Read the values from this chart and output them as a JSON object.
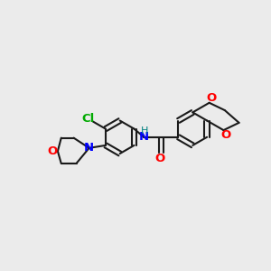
{
  "bg_color": "#ebebeb",
  "bond_color": "#1a1a1a",
  "N_color": "#0000ff",
  "O_color": "#ff0000",
  "Cl_color": "#00aa00",
  "H_color": "#008080",
  "line_width": 1.5,
  "font_size": 9.5,
  "figsize": [
    3.0,
    3.0
  ],
  "dpi": 100,
  "xlim": [
    0,
    10
  ],
  "ylim": [
    1,
    8
  ]
}
